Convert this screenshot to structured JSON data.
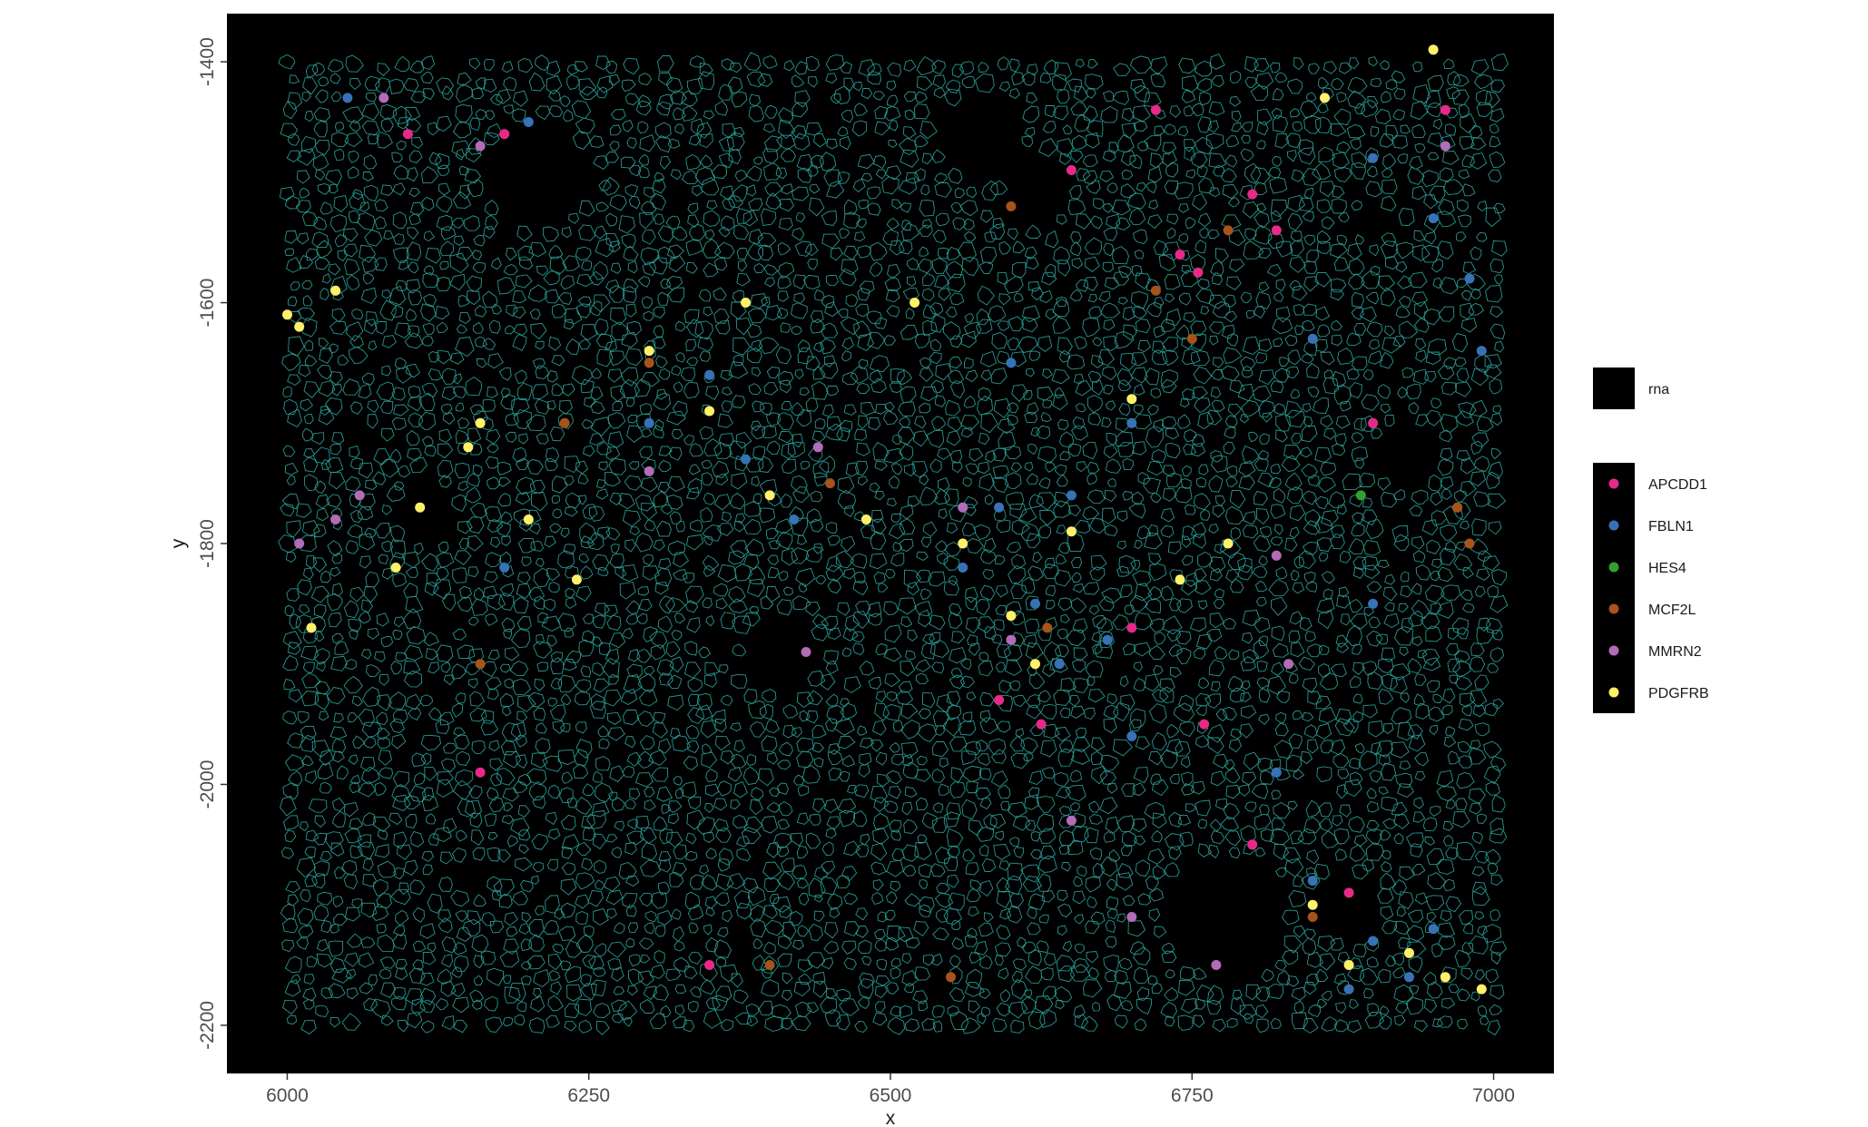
{
  "chart_data": {
    "type": "scatter",
    "title": "",
    "xlabel": "x",
    "ylabel": "y",
    "xlim": [
      5950,
      7050
    ],
    "ylim": [
      -2240,
      -1360
    ],
    "x_ticks": [
      6000,
      6250,
      6500,
      6750,
      7000
    ],
    "y_ticks": [
      -1400,
      -1600,
      -1800,
      -2000,
      -2200
    ],
    "tissue_extent": {
      "x": [
        6000,
        7000
      ],
      "y": [
        -2200,
        -1400
      ]
    },
    "background_color": "#000000",
    "grid": false,
    "legend_position": "right",
    "legend": {
      "polygon_entry": {
        "label": "rna",
        "color": "#000000"
      },
      "point_entries": [
        {
          "label": "APCDD1",
          "color": "#E7298A"
        },
        {
          "label": "FBLN1",
          "color": "#3772B7"
        },
        {
          "label": "HES4",
          "color": "#33A02C"
        },
        {
          "label": "MCF2L",
          "color": "#A6531C"
        },
        {
          "label": "MMRN2",
          "color": "#B26CB8"
        },
        {
          "label": "PDGFRB",
          "color": "#FFF06A"
        }
      ]
    },
    "series": [
      {
        "name": "rna",
        "kind": "cell-polygons",
        "stroke": "#36C9C0"
      },
      {
        "name": "APCDD1",
        "color": "#E7298A",
        "points": [
          [
            6650,
            -1490
          ],
          [
            6740,
            -1560
          ],
          [
            6755,
            -1575
          ],
          [
            6800,
            -1510
          ],
          [
            6820,
            -1540
          ],
          [
            6900,
            -1700
          ],
          [
            6590,
            -1930
          ],
          [
            6625,
            -1950
          ],
          [
            6700,
            -1870
          ],
          [
            6760,
            -1950
          ],
          [
            6100,
            -1460
          ],
          [
            6180,
            -1460
          ],
          [
            6160,
            -1990
          ],
          [
            6350,
            -2150
          ],
          [
            6800,
            -2050
          ],
          [
            6880,
            -2090
          ],
          [
            6720,
            -1440
          ],
          [
            6960,
            -1440
          ]
        ]
      },
      {
        "name": "FBLN1",
        "color": "#3772B7",
        "points": [
          [
            6050,
            -1430
          ],
          [
            6200,
            -1450
          ],
          [
            6300,
            -1700
          ],
          [
            6380,
            -1730
          ],
          [
            6420,
            -1780
          ],
          [
            6600,
            -1650
          ],
          [
            6620,
            -1850
          ],
          [
            6640,
            -1900
          ],
          [
            6680,
            -1880
          ],
          [
            6700,
            -1960
          ],
          [
            6820,
            -1990
          ],
          [
            6850,
            -2080
          ],
          [
            6900,
            -2130
          ],
          [
            6930,
            -2160
          ],
          [
            6880,
            -2170
          ],
          [
            6900,
            -1480
          ],
          [
            6950,
            -1530
          ],
          [
            6980,
            -1580
          ],
          [
            6990,
            -1640
          ],
          [
            6650,
            -1760
          ],
          [
            6700,
            -1700
          ],
          [
            6850,
            -1630
          ],
          [
            6900,
            -1850
          ],
          [
            6950,
            -2120
          ],
          [
            6180,
            -1820
          ],
          [
            6350,
            -1660
          ],
          [
            6560,
            -1820
          ],
          [
            6590,
            -1770
          ]
        ]
      },
      {
        "name": "HES4",
        "color": "#33A02C",
        "points": [
          [
            6890,
            -1760
          ]
        ]
      },
      {
        "name": "MCF2L",
        "color": "#A6531C",
        "points": [
          [
            6720,
            -1590
          ],
          [
            6780,
            -1540
          ],
          [
            6980,
            -1800
          ],
          [
            6970,
            -1770
          ],
          [
            6300,
            -1650
          ],
          [
            6160,
            -1900
          ],
          [
            6230,
            -1700
          ],
          [
            6450,
            -1750
          ],
          [
            6630,
            -1870
          ],
          [
            6850,
            -2110
          ],
          [
            6400,
            -2150
          ],
          [
            6550,
            -2160
          ],
          [
            6600,
            -1520
          ],
          [
            6750,
            -1630
          ]
        ]
      },
      {
        "name": "MMRN2",
        "color": "#B26CB8",
        "points": [
          [
            6010,
            -1800
          ],
          [
            6040,
            -1780
          ],
          [
            6060,
            -1760
          ],
          [
            6080,
            -1430
          ],
          [
            6160,
            -1470
          ],
          [
            6300,
            -1740
          ],
          [
            6440,
            -1720
          ],
          [
            6560,
            -1770
          ],
          [
            6600,
            -1880
          ],
          [
            6650,
            -2030
          ],
          [
            6700,
            -2110
          ],
          [
            6770,
            -2150
          ],
          [
            6830,
            -1900
          ],
          [
            6960,
            -1470
          ],
          [
            6820,
            -1810
          ],
          [
            6430,
            -1890
          ]
        ]
      },
      {
        "name": "PDGFRB",
        "color": "#FFF06A",
        "points": [
          [
            6010,
            -1620
          ],
          [
            6020,
            -1870
          ],
          [
            6040,
            -1590
          ],
          [
            6090,
            -1820
          ],
          [
            6110,
            -1770
          ],
          [
            6150,
            -1720
          ],
          [
            6200,
            -1780
          ],
          [
            6240,
            -1830
          ],
          [
            6300,
            -1640
          ],
          [
            6350,
            -1690
          ],
          [
            6400,
            -1760
          ],
          [
            6480,
            -1780
          ],
          [
            6560,
            -1800
          ],
          [
            6600,
            -1860
          ],
          [
            6620,
            -1900
          ],
          [
            6650,
            -1790
          ],
          [
            6740,
            -1830
          ],
          [
            6780,
            -1800
          ],
          [
            6850,
            -2100
          ],
          [
            6880,
            -2150
          ],
          [
            6930,
            -2140
          ],
          [
            6960,
            -2160
          ],
          [
            6990,
            -2170
          ],
          [
            6950,
            -1390
          ],
          [
            6860,
            -1430
          ],
          [
            6000,
            -1610
          ],
          [
            6160,
            -1700
          ],
          [
            6380,
            -1600
          ],
          [
            6520,
            -1600
          ],
          [
            6700,
            -1680
          ]
        ]
      }
    ]
  }
}
